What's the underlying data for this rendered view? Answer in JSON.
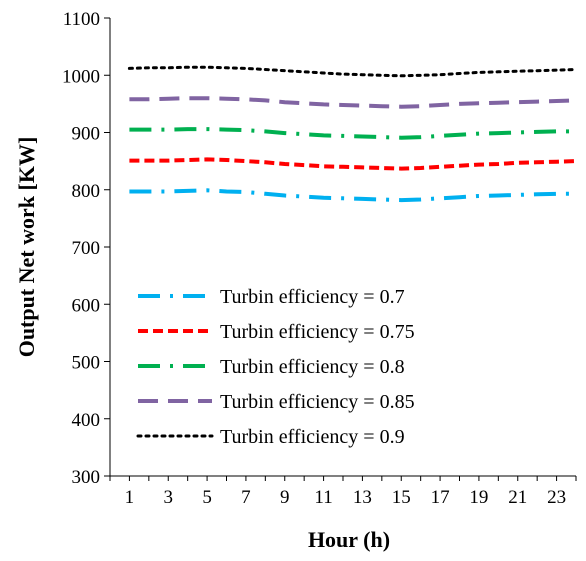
{
  "chart_data": {
    "type": "line",
    "title": "",
    "xlabel": "Hour (h)",
    "ylabel": "Output Net work [KW]",
    "xlim": [
      0,
      24
    ],
    "ylim": [
      300,
      1100
    ],
    "x_ticks": [
      1,
      3,
      5,
      7,
      9,
      11,
      13,
      15,
      17,
      19,
      21,
      23
    ],
    "y_ticks": [
      300,
      400,
      500,
      600,
      700,
      800,
      900,
      1000,
      1100
    ],
    "grid": false,
    "legend_position": "lower-left",
    "x": [
      1,
      2,
      3,
      4,
      5,
      6,
      7,
      8,
      9,
      10,
      11,
      12,
      13,
      14,
      15,
      16,
      17,
      18,
      19,
      20,
      21,
      22,
      23,
      24
    ],
    "series": [
      {
        "name": "Turbin efficiency = 0.7",
        "color": "#00b0f0",
        "dash": "dash-dot",
        "values": [
          797,
          797,
          797,
          798,
          799,
          797,
          796,
          793,
          790,
          788,
          786,
          785,
          784,
          783,
          782,
          783,
          785,
          787,
          789,
          790,
          791,
          792,
          793,
          793
        ]
      },
      {
        "name": "Turbin efficiency = 0.75",
        "color": "#ff0000",
        "dash": "dash",
        "values": [
          851,
          851,
          851,
          852,
          853,
          852,
          850,
          848,
          845,
          843,
          841,
          840,
          839,
          838,
          837,
          838,
          840,
          842,
          844,
          845,
          847,
          848,
          849,
          850
        ]
      },
      {
        "name": "Turbin efficiency = 0.8",
        "color": "#00b050",
        "dash": "dash-dot",
        "values": [
          905,
          905,
          905,
          906,
          906,
          905,
          904,
          902,
          899,
          897,
          895,
          894,
          893,
          892,
          891,
          892,
          894,
          896,
          898,
          899,
          900,
          901,
          902,
          902
        ]
      },
      {
        "name": "Turbin efficiency = 0.85",
        "color": "#8064a2",
        "dash": "long-dash",
        "values": [
          958,
          958,
          959,
          960,
          960,
          959,
          958,
          956,
          953,
          951,
          949,
          948,
          947,
          946,
          945,
          946,
          948,
          950,
          951,
          952,
          953,
          954,
          955,
          956
        ]
      },
      {
        "name": "Turbin efficiency = 0.9",
        "color": "#000000",
        "dash": "dot",
        "values": [
          1012,
          1013,
          1013,
          1014,
          1014,
          1013,
          1012,
          1010,
          1008,
          1006,
          1004,
          1002,
          1001,
          1000,
          999,
          1000,
          1001,
          1003,
          1005,
          1006,
          1007,
          1008,
          1009,
          1010
        ]
      }
    ]
  }
}
